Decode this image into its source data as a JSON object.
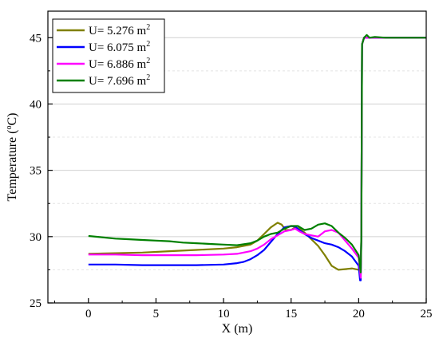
{
  "chart_data": {
    "type": "line",
    "title": "",
    "xlabel": "X (m)",
    "ylabel_prefix": "Temperature (",
    "ylabel_sup": "o",
    "ylabel_suffix": "C)",
    "xlim": [
      -3,
      25
    ],
    "ylim": [
      25,
      47
    ],
    "xticks": [
      0,
      5,
      10,
      15,
      20,
      25
    ],
    "yticks": [
      25,
      30,
      35,
      40,
      45
    ],
    "grid": "horizontal dashed",
    "legend_position": "top-left",
    "series": [
      {
        "name_prefix": "U= 5.276 m",
        "name_sup": "2",
        "color": "#808000",
        "points": [
          [
            0,
            28.7
          ],
          [
            2,
            28.75
          ],
          [
            4,
            28.8
          ],
          [
            6,
            28.9
          ],
          [
            8,
            29.0
          ],
          [
            10,
            29.1
          ],
          [
            11,
            29.2
          ],
          [
            12,
            29.4
          ],
          [
            12.5,
            29.7
          ],
          [
            13,
            30.2
          ],
          [
            13.5,
            30.7
          ],
          [
            14,
            31.05
          ],
          [
            14.3,
            30.9
          ],
          [
            14.6,
            30.5
          ],
          [
            15,
            30.5
          ],
          [
            15.3,
            30.7
          ],
          [
            15.6,
            30.6
          ],
          [
            16,
            30.3
          ],
          [
            16.5,
            29.8
          ],
          [
            17,
            29.3
          ],
          [
            17.5,
            28.6
          ],
          [
            18,
            27.8
          ],
          [
            18.5,
            27.5
          ],
          [
            19,
            27.55
          ],
          [
            19.5,
            27.6
          ],
          [
            20,
            27.5
          ],
          [
            20.15,
            27.2
          ],
          [
            20.2,
            30
          ],
          [
            20.25,
            44.5
          ],
          [
            20.4,
            45.0
          ],
          [
            21,
            45.0
          ],
          [
            25,
            45.0
          ]
        ]
      },
      {
        "name_prefix": "U= 6.075 m",
        "name_sup": "2",
        "color": "#0000ff",
        "points": [
          [
            0,
            27.9
          ],
          [
            2,
            27.9
          ],
          [
            4,
            27.85
          ],
          [
            6,
            27.85
          ],
          [
            8,
            27.85
          ],
          [
            10,
            27.9
          ],
          [
            11,
            28.0
          ],
          [
            11.5,
            28.1
          ],
          [
            12,
            28.3
          ],
          [
            12.5,
            28.6
          ],
          [
            13,
            29.0
          ],
          [
            13.5,
            29.6
          ],
          [
            14,
            30.2
          ],
          [
            14.5,
            30.7
          ],
          [
            15,
            30.8
          ],
          [
            15.3,
            30.75
          ],
          [
            15.6,
            30.5
          ],
          [
            16,
            30.2
          ],
          [
            16.5,
            29.9
          ],
          [
            17,
            29.7
          ],
          [
            17.5,
            29.5
          ],
          [
            18,
            29.4
          ],
          [
            18.5,
            29.2
          ],
          [
            19,
            28.9
          ],
          [
            19.5,
            28.5
          ],
          [
            20,
            27.8
          ],
          [
            20.1,
            26.7
          ],
          [
            20.15,
            26.7
          ],
          [
            20.2,
            30
          ],
          [
            20.25,
            44.5
          ],
          [
            20.4,
            45.0
          ],
          [
            21,
            45.0
          ],
          [
            25,
            45.0
          ]
        ]
      },
      {
        "name_prefix": "U= 6.886 m",
        "name_sup": "2",
        "color": "#ff00ff",
        "points": [
          [
            0,
            28.65
          ],
          [
            2,
            28.65
          ],
          [
            4,
            28.6
          ],
          [
            6,
            28.6
          ],
          [
            8,
            28.6
          ],
          [
            10,
            28.65
          ],
          [
            11,
            28.7
          ],
          [
            12,
            28.9
          ],
          [
            12.5,
            29.1
          ],
          [
            13,
            29.4
          ],
          [
            13.5,
            29.8
          ],
          [
            14,
            30.1
          ],
          [
            14.5,
            30.4
          ],
          [
            15,
            30.5
          ],
          [
            15.3,
            30.6
          ],
          [
            15.6,
            30.4
          ],
          [
            16,
            30.2
          ],
          [
            16.5,
            30.1
          ],
          [
            17,
            30.0
          ],
          [
            17.5,
            30.4
          ],
          [
            18,
            30.5
          ],
          [
            18.5,
            30.3
          ],
          [
            19,
            29.7
          ],
          [
            19.5,
            29.1
          ],
          [
            20,
            28.4
          ],
          [
            20.15,
            26.9
          ],
          [
            20.2,
            30
          ],
          [
            20.25,
            44.5
          ],
          [
            20.4,
            45.0
          ],
          [
            21,
            45.0
          ],
          [
            25,
            45.0
          ]
        ]
      },
      {
        "name_prefix": "U= 7.696 m",
        "name_sup": "2",
        "color": "#008000",
        "points": [
          [
            0,
            30.05
          ],
          [
            1,
            29.95
          ],
          [
            2,
            29.85
          ],
          [
            3,
            29.8
          ],
          [
            4,
            29.75
          ],
          [
            5,
            29.7
          ],
          [
            6,
            29.65
          ],
          [
            7,
            29.55
          ],
          [
            8,
            29.5
          ],
          [
            9,
            29.45
          ],
          [
            10,
            29.4
          ],
          [
            11,
            29.35
          ],
          [
            12,
            29.5
          ],
          [
            12.5,
            29.7
          ],
          [
            13,
            30.0
          ],
          [
            13.5,
            30.2
          ],
          [
            14,
            30.3
          ],
          [
            14.5,
            30.6
          ],
          [
            15,
            30.8
          ],
          [
            15.5,
            30.8
          ],
          [
            16,
            30.5
          ],
          [
            16.5,
            30.6
          ],
          [
            17,
            30.9
          ],
          [
            17.5,
            31.0
          ],
          [
            18,
            30.8
          ],
          [
            18.5,
            30.3
          ],
          [
            19,
            29.9
          ],
          [
            19.5,
            29.4
          ],
          [
            20,
            28.6
          ],
          [
            20.15,
            27.3
          ],
          [
            20.2,
            30
          ],
          [
            20.25,
            44.5
          ],
          [
            20.4,
            45.0
          ],
          [
            20.6,
            45.2
          ],
          [
            20.8,
            45.0
          ],
          [
            21.2,
            45.05
          ],
          [
            22,
            45.0
          ],
          [
            25,
            45.0
          ]
        ]
      }
    ]
  }
}
